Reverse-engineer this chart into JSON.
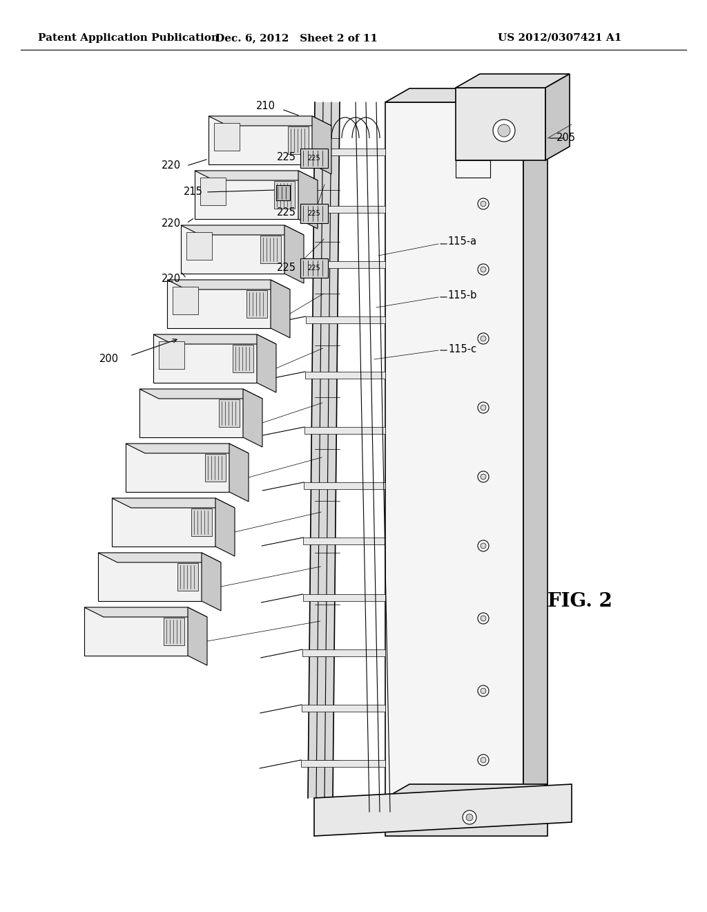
{
  "background_color": "#ffffff",
  "header_text_left": "Patent Application Publication",
  "header_text_mid": "Dec. 6, 2012   Sheet 2 of 11",
  "header_text_right": "US 2012/0307421 A1",
  "fig_label": "FIG. 2",
  "title_fontsize": 11,
  "label_fontsize": 10.5,
  "fig_label_fontsize": 20,
  "line_color": "#000000",
  "fill_light": "#f0f0f0",
  "fill_mid": "#e0e0e0",
  "fill_dark": "#c8c8c8"
}
